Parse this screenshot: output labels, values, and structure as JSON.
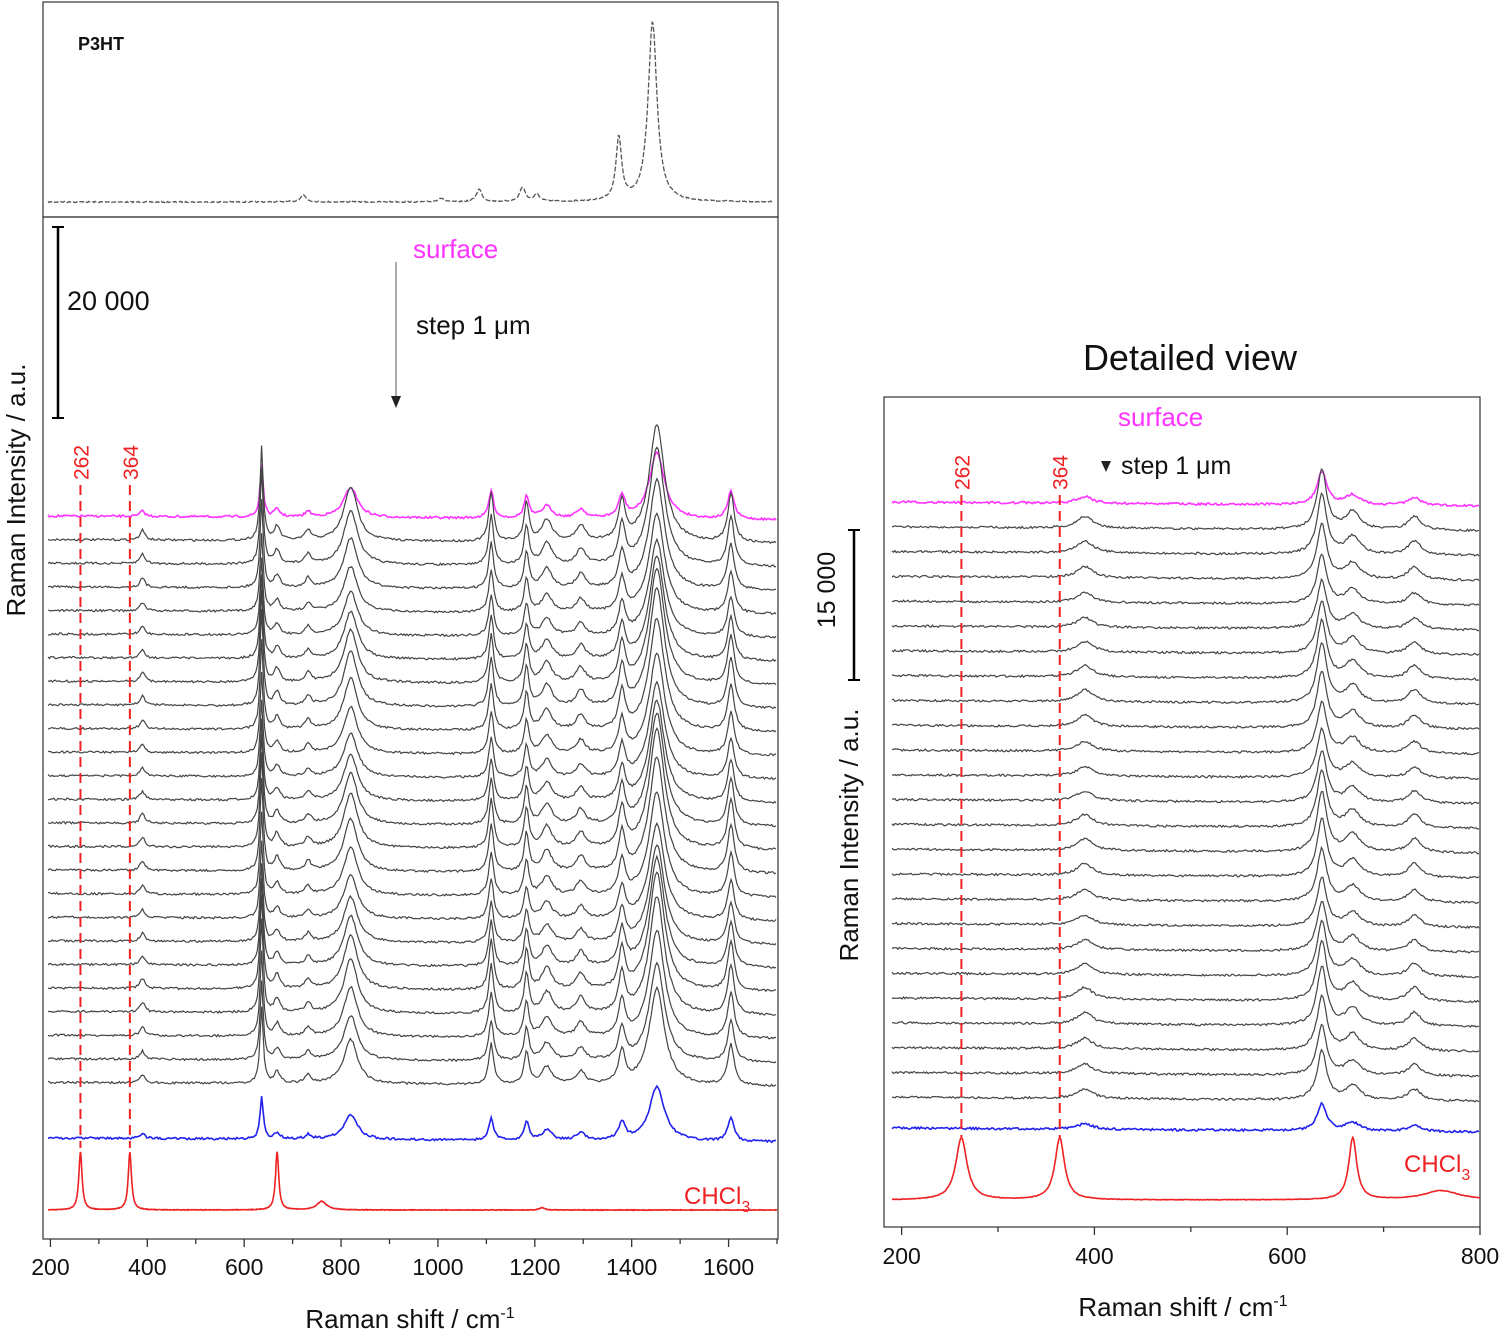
{
  "chart_data": [
    {
      "id": "p3ht",
      "type": "line",
      "title": "P3HT",
      "line_color": "#555555",
      "line_style": "dashed",
      "xlim": [
        195,
        1700
      ],
      "peaks": [
        [
          725,
          0.04
        ],
        [
          1010,
          0.02
        ],
        [
          1090,
          0.07
        ],
        [
          1180,
          0.08
        ],
        [
          1210,
          0.04
        ],
        [
          1380,
          0.35
        ],
        [
          1450,
          1.0
        ]
      ]
    },
    {
      "id": "main",
      "type": "line",
      "xlabel": "Raman shift / cm",
      "xlabel_sup": "-1",
      "ylabel": "Raman Intensity / a.u.",
      "xlim": [
        195,
        1700
      ],
      "xticks": [
        200,
        400,
        600,
        800,
        1000,
        1200,
        1400,
        1600
      ],
      "xtick_labels": [
        "200",
        "400",
        "600",
        "800",
        "1000",
        "1200",
        "1400",
        "1600"
      ],
      "scale_bar_label": "20 000",
      "surface_label": "surface",
      "step_label": "step 1 μm",
      "chcl3_label": "CHCl",
      "chcl3_sub": "3",
      "reference_lines": [
        {
          "x": 262,
          "label": "262"
        },
        {
          "x": 364,
          "label": "364"
        }
      ],
      "n_depth_spectra": 24,
      "colors": {
        "surface": "#ff33ff",
        "depth": "#444444",
        "deep": "#2222ee",
        "chcl3": "#ee2222"
      },
      "sample_peaks": [
        [
          390,
          1.0
        ],
        [
          636,
          1.0
        ],
        [
          668,
          1.0
        ],
        [
          732,
          1.0
        ],
        [
          820,
          3.0
        ],
        [
          1110,
          1.0
        ],
        [
          1183,
          1.0
        ],
        [
          1225,
          1.0
        ],
        [
          1295,
          1.0
        ],
        [
          1380,
          0.6
        ],
        [
          1452,
          2.6
        ],
        [
          1605,
          1.0
        ]
      ],
      "chcl3_peaks": [
        [
          262,
          1.0
        ],
        [
          364,
          1.0
        ],
        [
          668,
          1.0
        ],
        [
          760,
          0.15
        ],
        [
          1215,
          0.04
        ]
      ]
    },
    {
      "id": "detail",
      "type": "line",
      "title": "Detailed view",
      "xlabel": "Raman shift / cm",
      "xlabel_sup": "-1",
      "ylabel": "Raman Intensity / a.u.",
      "xlim": [
        190,
        800
      ],
      "xticks": [
        200,
        400,
        600,
        800
      ],
      "xtick_labels": [
        "200",
        "400",
        "600",
        "800"
      ],
      "scale_bar_label": "15 000",
      "surface_label": "surface",
      "step_label": "step 1 μm",
      "chcl3_label": "CHCl",
      "chcl3_sub": "3",
      "reference_lines": [
        {
          "x": 262,
          "label": "262"
        },
        {
          "x": 364,
          "label": "364"
        }
      ],
      "n_depth_spectra": 24,
      "colors": {
        "surface": "#ff33ff",
        "depth": "#444444",
        "deep": "#2222ee",
        "chcl3": "#ee2222"
      },
      "sample_peaks": [
        [
          390,
          1.0
        ],
        [
          636,
          1.0
        ],
        [
          668,
          1.0
        ],
        [
          732,
          1.0
        ]
      ],
      "chcl3_peaks": [
        [
          262,
          1.0
        ],
        [
          364,
          1.0
        ],
        [
          668,
          1.0
        ],
        [
          760,
          0.15
        ]
      ]
    }
  ]
}
